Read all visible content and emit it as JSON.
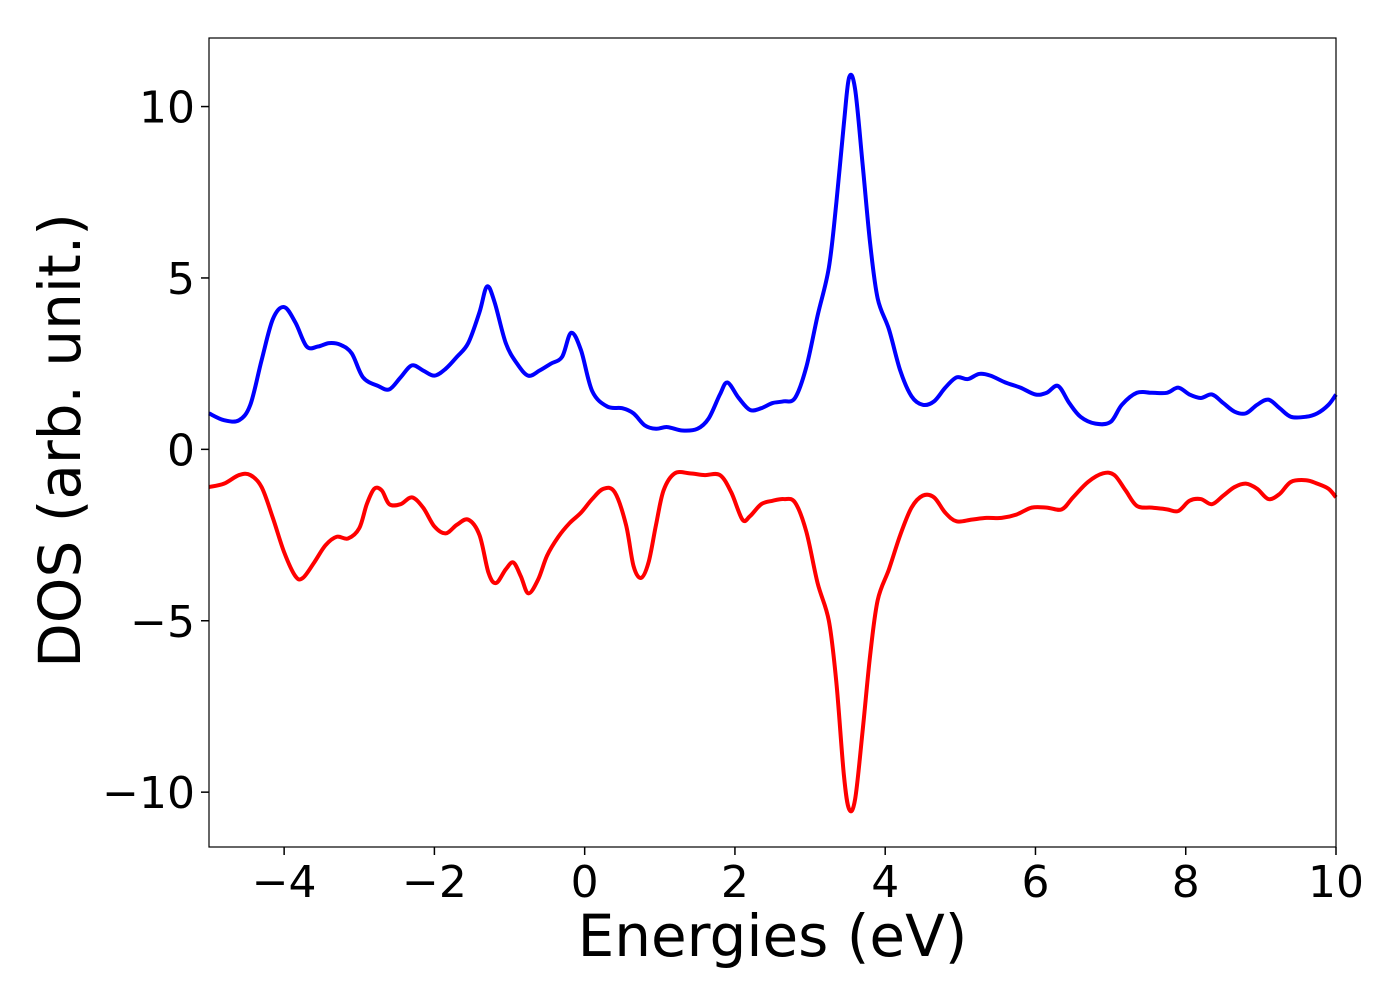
{
  "chart_data": {
    "type": "line",
    "xlabel": "Energies (eV)",
    "ylabel": "DOS (arb. unit.)",
    "xlim": [
      -5,
      10
    ],
    "ylim": [
      -11.6,
      12
    ],
    "grid": false,
    "legend": "none",
    "x_ticks": [
      {
        "value": -4,
        "label": "−4"
      },
      {
        "value": -2,
        "label": "−2"
      },
      {
        "value": 0,
        "label": "0"
      },
      {
        "value": 2,
        "label": "2"
      },
      {
        "value": 4,
        "label": "4"
      },
      {
        "value": 6,
        "label": "6"
      },
      {
        "value": 8,
        "label": "8"
      },
      {
        "value": 10,
        "label": "10"
      }
    ],
    "y_ticks": [
      {
        "value": 10,
        "label": "10"
      },
      {
        "value": 5,
        "label": "5"
      },
      {
        "value": 0,
        "label": "0"
      },
      {
        "value": -5,
        "label": "−5"
      },
      {
        "value": -10,
        "label": "−10"
      }
    ],
    "series": [
      {
        "color": "#0000ff",
        "points": [
          [
            -5.0,
            1.05
          ],
          [
            -4.8,
            0.85
          ],
          [
            -4.6,
            0.85
          ],
          [
            -4.45,
            1.3
          ],
          [
            -4.3,
            2.6
          ],
          [
            -4.15,
            3.8
          ],
          [
            -4.0,
            4.15
          ],
          [
            -3.85,
            3.7
          ],
          [
            -3.7,
            3.0
          ],
          [
            -3.55,
            3.0
          ],
          [
            -3.4,
            3.1
          ],
          [
            -3.25,
            3.05
          ],
          [
            -3.1,
            2.8
          ],
          [
            -2.95,
            2.1
          ],
          [
            -2.75,
            1.85
          ],
          [
            -2.6,
            1.75
          ],
          [
            -2.45,
            2.1
          ],
          [
            -2.3,
            2.45
          ],
          [
            -2.15,
            2.3
          ],
          [
            -2.0,
            2.15
          ],
          [
            -1.85,
            2.35
          ],
          [
            -1.7,
            2.7
          ],
          [
            -1.55,
            3.1
          ],
          [
            -1.4,
            4.0
          ],
          [
            -1.3,
            4.75
          ],
          [
            -1.2,
            4.3
          ],
          [
            -1.05,
            3.1
          ],
          [
            -0.9,
            2.5
          ],
          [
            -0.75,
            2.15
          ],
          [
            -0.6,
            2.3
          ],
          [
            -0.45,
            2.5
          ],
          [
            -0.3,
            2.7
          ],
          [
            -0.18,
            3.4
          ],
          [
            -0.05,
            2.9
          ],
          [
            0.1,
            1.7
          ],
          [
            0.3,
            1.25
          ],
          [
            0.5,
            1.2
          ],
          [
            0.65,
            1.05
          ],
          [
            0.8,
            0.7
          ],
          [
            0.95,
            0.6
          ],
          [
            1.1,
            0.65
          ],
          [
            1.3,
            0.55
          ],
          [
            1.5,
            0.6
          ],
          [
            1.65,
            0.9
          ],
          [
            1.8,
            1.6
          ],
          [
            1.9,
            1.95
          ],
          [
            2.05,
            1.5
          ],
          [
            2.2,
            1.15
          ],
          [
            2.35,
            1.2
          ],
          [
            2.5,
            1.35
          ],
          [
            2.65,
            1.4
          ],
          [
            2.8,
            1.5
          ],
          [
            2.95,
            2.4
          ],
          [
            3.1,
            3.9
          ],
          [
            3.25,
            5.3
          ],
          [
            3.35,
            7.2
          ],
          [
            3.45,
            9.5
          ],
          [
            3.52,
            10.85
          ],
          [
            3.6,
            10.5
          ],
          [
            3.7,
            8.3
          ],
          [
            3.8,
            6.0
          ],
          [
            3.9,
            4.4
          ],
          [
            4.05,
            3.5
          ],
          [
            4.2,
            2.3
          ],
          [
            4.35,
            1.55
          ],
          [
            4.5,
            1.3
          ],
          [
            4.65,
            1.4
          ],
          [
            4.8,
            1.8
          ],
          [
            4.95,
            2.1
          ],
          [
            5.1,
            2.05
          ],
          [
            5.25,
            2.2
          ],
          [
            5.4,
            2.15
          ],
          [
            5.6,
            1.95
          ],
          [
            5.8,
            1.8
          ],
          [
            6.0,
            1.6
          ],
          [
            6.15,
            1.65
          ],
          [
            6.3,
            1.85
          ],
          [
            6.45,
            1.35
          ],
          [
            6.6,
            0.95
          ],
          [
            6.8,
            0.75
          ],
          [
            7.0,
            0.8
          ],
          [
            7.15,
            1.3
          ],
          [
            7.35,
            1.65
          ],
          [
            7.55,
            1.65
          ],
          [
            7.75,
            1.65
          ],
          [
            7.9,
            1.8
          ],
          [
            8.05,
            1.6
          ],
          [
            8.2,
            1.5
          ],
          [
            8.35,
            1.6
          ],
          [
            8.5,
            1.35
          ],
          [
            8.65,
            1.1
          ],
          [
            8.8,
            1.05
          ],
          [
            8.95,
            1.3
          ],
          [
            9.1,
            1.45
          ],
          [
            9.25,
            1.2
          ],
          [
            9.4,
            0.95
          ],
          [
            9.6,
            0.95
          ],
          [
            9.75,
            1.05
          ],
          [
            9.9,
            1.3
          ],
          [
            10.0,
            1.6
          ]
        ]
      },
      {
        "color": "#ff0000",
        "points": [
          [
            -5.0,
            -1.1
          ],
          [
            -4.8,
            -1.0
          ],
          [
            -4.6,
            -0.75
          ],
          [
            -4.45,
            -0.75
          ],
          [
            -4.3,
            -1.1
          ],
          [
            -4.15,
            -2.0
          ],
          [
            -4.0,
            -3.0
          ],
          [
            -3.85,
            -3.7
          ],
          [
            -3.75,
            -3.75
          ],
          [
            -3.6,
            -3.3
          ],
          [
            -3.45,
            -2.8
          ],
          [
            -3.3,
            -2.55
          ],
          [
            -3.15,
            -2.6
          ],
          [
            -3.0,
            -2.3
          ],
          [
            -2.9,
            -1.6
          ],
          [
            -2.8,
            -1.15
          ],
          [
            -2.7,
            -1.2
          ],
          [
            -2.6,
            -1.6
          ],
          [
            -2.45,
            -1.6
          ],
          [
            -2.3,
            -1.4
          ],
          [
            -2.15,
            -1.7
          ],
          [
            -2.0,
            -2.25
          ],
          [
            -1.85,
            -2.45
          ],
          [
            -1.7,
            -2.2
          ],
          [
            -1.55,
            -2.05
          ],
          [
            -1.4,
            -2.5
          ],
          [
            -1.28,
            -3.6
          ],
          [
            -1.18,
            -3.9
          ],
          [
            -1.05,
            -3.5
          ],
          [
            -0.95,
            -3.3
          ],
          [
            -0.85,
            -3.7
          ],
          [
            -0.75,
            -4.2
          ],
          [
            -0.62,
            -3.8
          ],
          [
            -0.5,
            -3.1
          ],
          [
            -0.35,
            -2.55
          ],
          [
            -0.2,
            -2.15
          ],
          [
            -0.05,
            -1.85
          ],
          [
            0.1,
            -1.45
          ],
          [
            0.25,
            -1.15
          ],
          [
            0.4,
            -1.25
          ],
          [
            0.55,
            -2.2
          ],
          [
            0.65,
            -3.4
          ],
          [
            0.75,
            -3.75
          ],
          [
            0.85,
            -3.3
          ],
          [
            0.95,
            -2.2
          ],
          [
            1.05,
            -1.2
          ],
          [
            1.2,
            -0.7
          ],
          [
            1.4,
            -0.7
          ],
          [
            1.6,
            -0.75
          ],
          [
            1.8,
            -0.75
          ],
          [
            1.95,
            -1.25
          ],
          [
            2.1,
            -2.05
          ],
          [
            2.2,
            -1.95
          ],
          [
            2.35,
            -1.6
          ],
          [
            2.5,
            -1.5
          ],
          [
            2.65,
            -1.45
          ],
          [
            2.8,
            -1.55
          ],
          [
            2.95,
            -2.4
          ],
          [
            3.1,
            -3.9
          ],
          [
            3.25,
            -5.0
          ],
          [
            3.35,
            -6.8
          ],
          [
            3.45,
            -9.5
          ],
          [
            3.52,
            -10.5
          ],
          [
            3.6,
            -10.2
          ],
          [
            3.7,
            -8.2
          ],
          [
            3.8,
            -6.0
          ],
          [
            3.9,
            -4.4
          ],
          [
            4.05,
            -3.5
          ],
          [
            4.2,
            -2.5
          ],
          [
            4.35,
            -1.7
          ],
          [
            4.5,
            -1.35
          ],
          [
            4.65,
            -1.4
          ],
          [
            4.8,
            -1.85
          ],
          [
            4.95,
            -2.1
          ],
          [
            5.15,
            -2.05
          ],
          [
            5.35,
            -2.0
          ],
          [
            5.55,
            -2.0
          ],
          [
            5.75,
            -1.9
          ],
          [
            5.95,
            -1.7
          ],
          [
            6.15,
            -1.7
          ],
          [
            6.35,
            -1.75
          ],
          [
            6.5,
            -1.4
          ],
          [
            6.7,
            -0.95
          ],
          [
            6.9,
            -0.7
          ],
          [
            7.05,
            -0.75
          ],
          [
            7.2,
            -1.2
          ],
          [
            7.35,
            -1.65
          ],
          [
            7.55,
            -1.7
          ],
          [
            7.75,
            -1.75
          ],
          [
            7.9,
            -1.8
          ],
          [
            8.05,
            -1.5
          ],
          [
            8.2,
            -1.45
          ],
          [
            8.35,
            -1.6
          ],
          [
            8.5,
            -1.35
          ],
          [
            8.65,
            -1.1
          ],
          [
            8.8,
            -1.0
          ],
          [
            8.95,
            -1.15
          ],
          [
            9.1,
            -1.45
          ],
          [
            9.25,
            -1.3
          ],
          [
            9.4,
            -0.95
          ],
          [
            9.6,
            -0.9
          ],
          [
            9.75,
            -1.0
          ],
          [
            9.9,
            -1.15
          ],
          [
            10.0,
            -1.4
          ]
        ]
      }
    ]
  }
}
